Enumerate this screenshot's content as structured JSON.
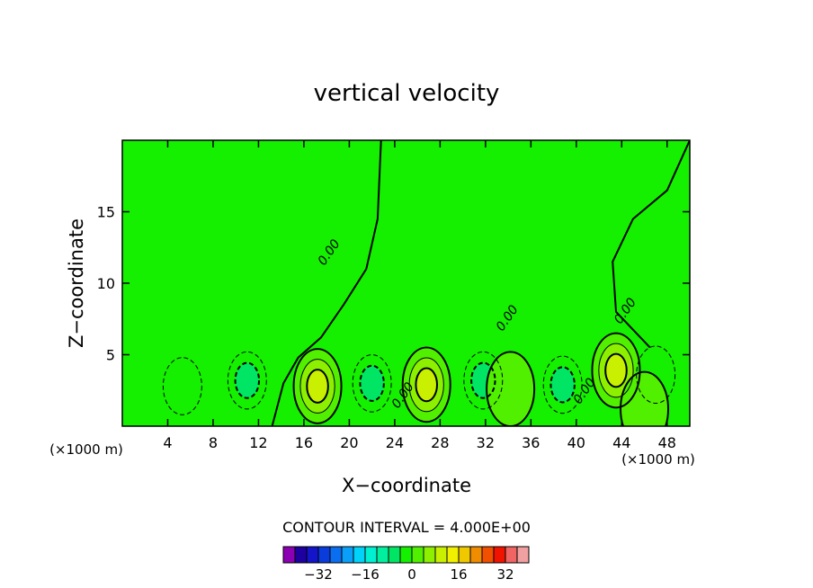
{
  "chart_data": {
    "type": "contour",
    "title": "vertical velocity",
    "xlabel": "X−coordinate",
    "ylabel": "Z−coordinate",
    "x_unit": "(×1000 m)",
    "y_unit": "(×1000 m)",
    "xlim": [
      0,
      50
    ],
    "ylim": [
      0,
      20
    ],
    "x_ticks": [
      4,
      8,
      12,
      16,
      20,
      24,
      28,
      32,
      36,
      40,
      44,
      48
    ],
    "y_ticks": [
      5,
      10,
      15
    ],
    "x_tick_labels": [
      "4",
      "8",
      "12",
      "16",
      "20",
      "24",
      "28",
      "32",
      "36",
      "40",
      "44",
      "48"
    ],
    "y_tick_labels": [
      "5",
      "10",
      "15"
    ],
    "contour_interval_text": "CONTOUR INTERVAL = 4.000E+00",
    "contour_labels": [
      {
        "text": "0.00",
        "x": 18.5,
        "y": 12.0
      },
      {
        "text": "0.00",
        "x": 34.2,
        "y": 7.4
      },
      {
        "text": "0.00",
        "x": 44.6,
        "y": 7.9
      },
      {
        "text": "0.00",
        "x": 25.0,
        "y": 2.0
      },
      {
        "text": "0.00",
        "x": 41.0,
        "y": 2.3
      }
    ],
    "colorbar": {
      "levels": [
        -40,
        -36,
        -32,
        -28,
        -24,
        -20,
        -16,
        -12,
        -8,
        -4,
        0,
        4,
        8,
        12,
        16,
        20,
        24,
        28,
        32,
        36
      ],
      "colors": [
        "#8c00b4",
        "#1e00a0",
        "#1414c8",
        "#0a3cdc",
        "#0a6ef0",
        "#0aa0fa",
        "#00d2fa",
        "#00f0d2",
        "#00f0a0",
        "#00e664",
        "#14f000",
        "#50f000",
        "#8cf000",
        "#c8f000",
        "#f0f000",
        "#f0c800",
        "#f08c00",
        "#f05000",
        "#f01400",
        "#f06464",
        "#f0a0a0"
      ],
      "tick_values": [
        -32,
        -16,
        0,
        16,
        32
      ],
      "tick_labels": [
        "−32",
        "−16",
        "0",
        "16",
        "32"
      ]
    },
    "features": [
      {
        "sign": "positive",
        "x": 17.2,
        "z": 2.8,
        "peak": 10
      },
      {
        "sign": "positive",
        "x": 26.8,
        "z": 2.9,
        "peak": 12
      },
      {
        "sign": "positive",
        "x": 43.5,
        "z": 3.9,
        "peak": 12
      },
      {
        "sign": "negative",
        "x": 5.3,
        "z": 2.8,
        "peak": -4
      },
      {
        "sign": "negative",
        "x": 11.0,
        "z": 3.2,
        "peak": -6
      },
      {
        "sign": "negative",
        "x": 22.0,
        "z": 3.0,
        "peak": -6
      },
      {
        "sign": "negative",
        "x": 31.8,
        "z": 3.2,
        "peak": -6
      },
      {
        "sign": "negative",
        "x": 38.8,
        "z": 2.9,
        "peak": -6
      },
      {
        "sign": "negative",
        "x": 47.0,
        "z": 3.6,
        "peak": -4
      },
      {
        "sign": "positive",
        "x": 34.2,
        "z": 2.6,
        "peak": 4
      },
      {
        "sign": "positive",
        "x": 46.0,
        "z": 1.2,
        "peak": 4
      }
    ]
  }
}
